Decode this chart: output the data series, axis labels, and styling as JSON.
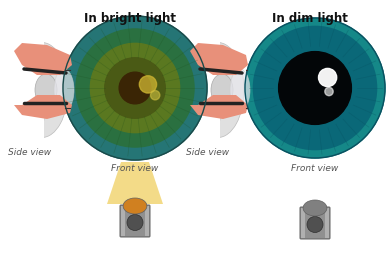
{
  "title_bright": "In bright light",
  "title_dim": "In dim light",
  "label_front": "Front view",
  "label_side": "Side view",
  "bg_color": "#ffffff",
  "title_fontsize": 8.5,
  "label_fontsize": 6.5,
  "eyelid_color": "#e8907a",
  "sclera_color": "#d8d8d8",
  "lens_color": "#cccccc",
  "dark_strip_color": "#222222",
  "connector_color": "#333333",
  "iris_bright_outer": "#2a8888",
  "iris_bright_mid": "#3a7830",
  "iris_bright_inner": "#5a6818",
  "pupil_bright": "#3a2505",
  "pupil_bright_r": 0.22,
  "iris_dim_outer": "#158888",
  "iris_dim_mid": "#0a6070",
  "pupil_dim": "#030608",
  "pupil_dim_r": 0.52,
  "camera_body": "#909090",
  "camera_lens_circle": "#505050",
  "camera_dome": "#d08020",
  "cone_color": "#f0c840"
}
